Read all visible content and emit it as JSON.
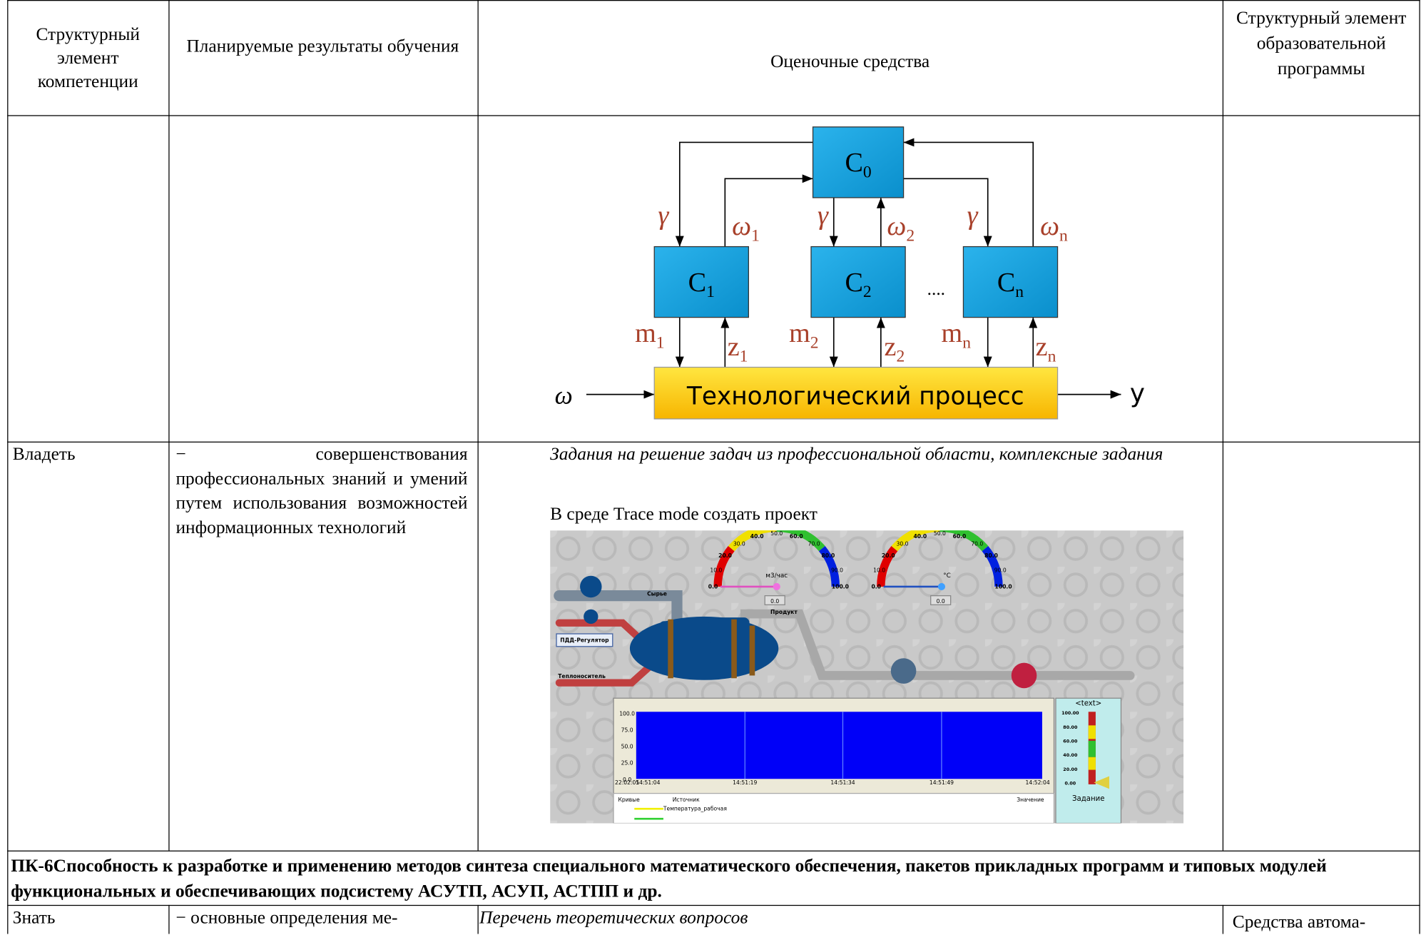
{
  "table": {
    "header": [
      "Структурный элемент компетенции",
      "Планируемые результаты обучения",
      "Оценочные средства",
      "Структурный элемент образовательной программы"
    ],
    "row_vladet": {
      "level": "Владеть",
      "result": "− совершенствования профессиональных знаний и умений путем использования возможностей информационных технологий",
      "task": "Задания на решение задач из профессиональной области, комплексные задания",
      "instruction": "В среде Trace mode создать проект"
    },
    "competence": "ПК-6Способность к разработке и применению методов синтеза специального математического обеспечения, пакетов прикладных программ и типовых модулей функциональных и обеспечивающих подсистему АСУТП, АСУП, АСТПП и др.",
    "row_znat": {
      "level": "Знать",
      "result": "− основные определения ме-",
      "task": "Перечень теоретических вопросов",
      "element": "Средства автома-"
    }
  },
  "diagram": {
    "nodes": [
      {
        "label": "C",
        "sub": "0"
      },
      {
        "label": "C",
        "sub": "1"
      },
      {
        "label": "C",
        "sub": "2"
      },
      {
        "label": "C",
        "sub": "n"
      }
    ],
    "dots": "....",
    "process": "Технологический процесс",
    "input": "ω",
    "output": "y",
    "signals": [
      {
        "label": "γ"
      },
      {
        "label": "ω",
        "sub": "1"
      },
      {
        "label": "γ"
      },
      {
        "label": "ω",
        "sub": "2"
      },
      {
        "label": "γ"
      },
      {
        "label": "ω",
        "sub": "n"
      },
      {
        "label": "m",
        "sub": "1"
      },
      {
        "label": "z",
        "sub": "1"
      },
      {
        "label": "m",
        "sub": "2"
      },
      {
        "label": "z",
        "sub": "2"
      },
      {
        "label": "m",
        "sub": "n"
      },
      {
        "label": "z",
        "sub": "n"
      }
    ]
  },
  "screenshot": {
    "gauge_ticks": [
      "0.0",
      "10.0",
      "20.0",
      "30.0",
      "40.0",
      "50.0",
      "60.0",
      "70.0",
      "80.0",
      "90.0",
      "100.0"
    ],
    "gauge_units": [
      "м3/час",
      "°C"
    ],
    "gauge_values": [
      "0.0",
      "0.0"
    ],
    "labels": [
      "Сырье",
      "Продукт",
      "ПДД-Регулятор",
      "Теплоноситель"
    ],
    "trend_yticks": [
      "100.0",
      "75.0",
      "50.0",
      "25.0",
      "0.0"
    ],
    "trend_times": [
      "22:02:05",
      "14:51:04",
      "14:51:19",
      "14:51:34",
      "14:51:49",
      "14:52:04"
    ],
    "legend_headers": [
      "Кривые",
      "Источник",
      "Значение"
    ],
    "curves": [
      "Температура_рабочая"
    ],
    "bar_title": "<text>",
    "bar_ticks": [
      "100.00",
      "80.00",
      "60.00",
      "40.00",
      "20.00",
      "0.00"
    ],
    "bar_caption": "Задание"
  }
}
